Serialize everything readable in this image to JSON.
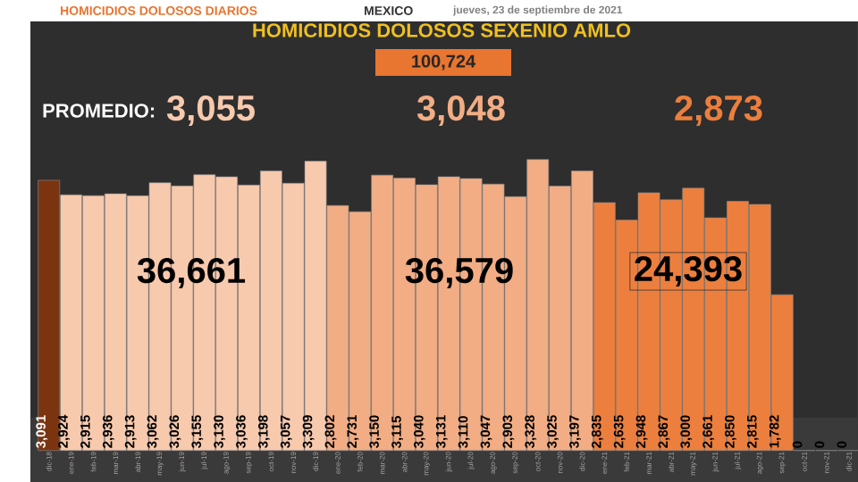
{
  "chart_data": {
    "type": "bar",
    "title": "HOMICIDIOS DOLOSOS SEXENIO AMLO",
    "categories": [
      "dic-18",
      "ene-19",
      "feb-19",
      "mar-19",
      "abr-19",
      "may-19",
      "jun-19",
      "jul-19",
      "ago-19",
      "sep-19",
      "oct-19",
      "nov-19",
      "dic-19",
      "ene-20",
      "feb-20",
      "mar-20",
      "abr-20",
      "may-20",
      "jun-20",
      "jul-20",
      "ago-20",
      "sep-20",
      "oct-20",
      "nov-20",
      "dic-20",
      "ene-21",
      "feb-21",
      "mar-21",
      "abr-21",
      "may-21",
      "jun-21",
      "jul-21",
      "ago-21",
      "sep-21",
      "oct-21",
      "nov-21",
      "dic-21"
    ],
    "values": [
      3091,
      2924,
      2915,
      2936,
      2913,
      3062,
      3026,
      3155,
      3130,
      3036,
      3198,
      3057,
      3309,
      2802,
      2731,
      3150,
      3115,
      3040,
      3131,
      3110,
      3047,
      2903,
      3328,
      3025,
      3197,
      2835,
      2635,
      2948,
      2867,
      3000,
      2661,
      2850,
      2815,
      1782,
      0,
      0,
      0
    ],
    "value_labels": [
      "3,091",
      "2,924",
      "2,915",
      "2,936",
      "2,913",
      "3,062",
      "3,026",
      "3,155",
      "3,130",
      "3,036",
      "3,198",
      "3,057",
      "3,309",
      "2,802",
      "2,731",
      "3,150",
      "3,115",
      "3,040",
      "3,131",
      "3,110",
      "3,047",
      "2,903",
      "3,328",
      "3,025",
      "3,197",
      "2,835",
      "2,635",
      "2,948",
      "2,867",
      "3,000",
      "2,661",
      "2,850",
      "2,815",
      "1,782",
      "0",
      "0",
      "0"
    ],
    "colors": [
      "#7a3510",
      "#f7c9ad",
      "#f7c9ad",
      "#f7c9ad",
      "#f7c9ad",
      "#f7c9ad",
      "#f7c9ad",
      "#f7c9ad",
      "#f7c9ad",
      "#f7c9ad",
      "#f7c9ad",
      "#f7c9ad",
      "#f7c9ad",
      "#f2ad84",
      "#f2ad84",
      "#f2ad84",
      "#f2ad84",
      "#f2ad84",
      "#f2ad84",
      "#f2ad84",
      "#f2ad84",
      "#f2ad84",
      "#f2ad84",
      "#f2ad84",
      "#f2ad84",
      "#ec7f3d",
      "#ec7f3d",
      "#ec7f3d",
      "#ec7f3d",
      "#ec7f3d",
      "#ec7f3d",
      "#ec7f3d",
      "#ec7f3d",
      "#ec7f3d",
      "#ec7f3d",
      "#ec7f3d",
      "#ec7f3d"
    ],
    "annotations": [
      "HOMICIDIOS DOLOSOS DIARIOS",
      "MEXICO",
      "jueves, 23 de septiembre de 2021",
      "100,724",
      "PROMEDIO:",
      "3,055",
      "3,048",
      "2,873",
      "36,661",
      "36,579",
      "24,393"
    ]
  }
}
